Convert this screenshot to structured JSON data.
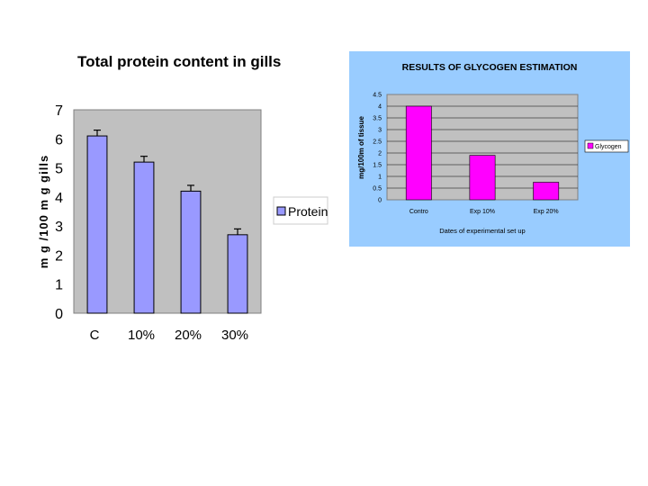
{
  "chart_data": [
    {
      "type": "bar",
      "title": "Total protein content in gills",
      "xlabel": "",
      "ylabel": "m g /100 m g gills",
      "categories": [
        "C",
        "10%",
        "20%",
        "30%"
      ],
      "series": [
        {
          "name": "Protein",
          "values": [
            6.1,
            5.2,
            4.2,
            2.7
          ],
          "error": [
            0.2,
            0.2,
            0.2,
            0.2
          ],
          "color": "#9999ff"
        }
      ],
      "ylim": [
        0,
        7
      ],
      "yticks": [
        "0",
        "1",
        "2",
        "3",
        "4",
        "5",
        "6",
        "7"
      ],
      "grid": false,
      "plot_background": "#c0c0c0",
      "legend": "right"
    },
    {
      "type": "bar",
      "title": "RESULTS OF GLYCOGEN ESTIMATION",
      "xlabel": "Dates of experimental set up",
      "ylabel": "mg/100m of tissue",
      "categories": [
        "Contro",
        "Exp 10%",
        "Exp 20%"
      ],
      "series": [
        {
          "name": "Glycogen",
          "values": [
            4.0,
            1.9,
            0.75
          ],
          "color": "#ff00ff"
        }
      ],
      "ylim": [
        0,
        4.5
      ],
      "yticks": [
        "0",
        "0.5",
        "1",
        "1.5",
        "2",
        "2.5",
        "3",
        "3.5",
        "4",
        "4.5"
      ],
      "grid": true,
      "background": "#99ccff",
      "plot_background": "#c0c0c0",
      "legend": "right"
    }
  ]
}
